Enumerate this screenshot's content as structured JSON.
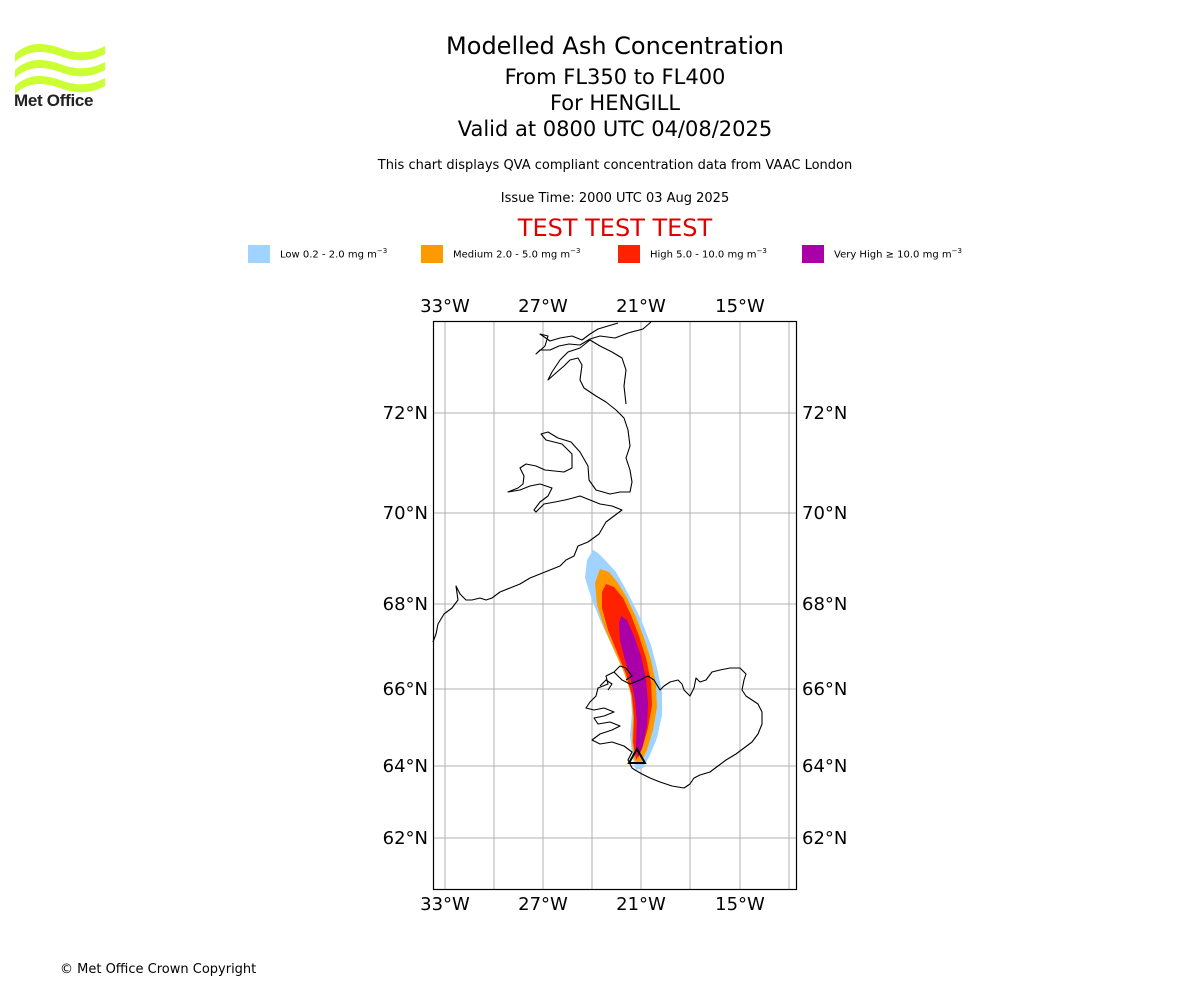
{
  "header": {
    "title": "Modelled Ash Concentration",
    "levels": "From FL350 to FL400",
    "volcano": "For HENGILL",
    "valid": "Valid at 0800 UTC 04/08/2025",
    "description": "This chart displays QVA compliant concentration data from VAAC London",
    "issue_time": "Issue Time: 2000 UTC 03 Aug 2025",
    "test_banner": "TEST TEST TEST"
  },
  "logo": {
    "text": "Met Office",
    "color": "#ccff33"
  },
  "legend": [
    {
      "label": "Low 0.2 - 2.0 mg m",
      "unit_exp": "−3",
      "color": "#a0d3ff"
    },
    {
      "label": "Medium 2.0 - 5.0 mg m",
      "unit_exp": "−3",
      "color": "#ff9900"
    },
    {
      "label": "High 5.0 - 10.0 mg m",
      "unit_exp": "−3",
      "color": "#ff2200"
    },
    {
      "label": "Very High  ≥  10.0 mg m",
      "unit_exp": "−3",
      "color": "#aa00aa"
    }
  ],
  "map": {
    "lon_labels": [
      "33°W",
      "27°W",
      "21°W",
      "15°W"
    ],
    "lat_labels": [
      "72°N",
      "70°N",
      "68°N",
      "66°N",
      "64°N",
      "62°N"
    ],
    "volcano_marker": "triangle"
  },
  "footer": {
    "copyright": "© Met Office Crown Copyright"
  }
}
